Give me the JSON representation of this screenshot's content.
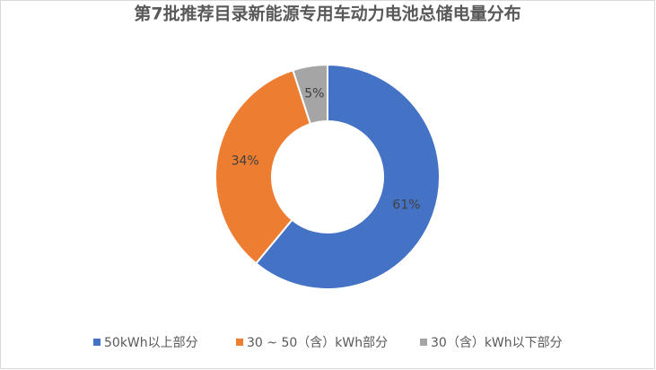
{
  "chart_data": {
    "type": "donut",
    "title": "第7批推荐目录新能源专用车动力电池总储电量分布",
    "categories": [
      "50kWh以上部分",
      "30 ~ 50（含）kWh部分",
      "30（含）kWh以下部分"
    ],
    "values": [
      61,
      34,
      5
    ],
    "value_labels": [
      "61%",
      "34%",
      "5%"
    ],
    "colors": [
      "#4472c4",
      "#ed7d31",
      "#a5a5a5"
    ],
    "legend": "bottom"
  }
}
